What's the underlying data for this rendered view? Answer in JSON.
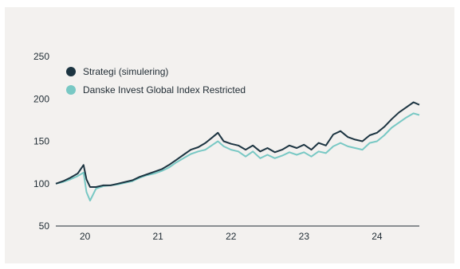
{
  "colors": {
    "background": "#f3f1ef",
    "strategy": "#1c3441",
    "index": "#78c8c4"
  },
  "legend": {
    "items": [
      {
        "label": "Strategi (simulering)",
        "color": "#1c3441"
      },
      {
        "label": "Danske Invest Global Index Restricted",
        "color": "#78c8c4"
      }
    ]
  },
  "chart_data": {
    "type": "line",
    "title": "",
    "xlabel": "",
    "ylabel": "",
    "ylim": [
      50,
      250
    ],
    "yticks": [
      50,
      100,
      150,
      200,
      250
    ],
    "xlim": [
      2019.7,
      2024.68
    ],
    "xticks": [
      {
        "label": "20",
        "value": 2020.1
      },
      {
        "label": "21",
        "value": 2021.1
      },
      {
        "label": "22",
        "value": 2022.1
      },
      {
        "label": "23",
        "value": 2023.1
      },
      {
        "label": "24",
        "value": 2024.1
      }
    ],
    "legend_position": "top-left",
    "grid": false,
    "series": [
      {
        "name": "Strategi (simulering)",
        "color": "#1c3441",
        "x": [
          2019.7,
          2019.8,
          2019.9,
          2020.0,
          2020.08,
          2020.12,
          2020.17,
          2020.25,
          2020.35,
          2020.45,
          2020.55,
          2020.65,
          2020.75,
          2020.85,
          2020.95,
          2021.05,
          2021.15,
          2021.25,
          2021.35,
          2021.45,
          2021.55,
          2021.65,
          2021.75,
          2021.85,
          2021.92,
          2022.0,
          2022.1,
          2022.2,
          2022.3,
          2022.4,
          2022.5,
          2022.6,
          2022.7,
          2022.8,
          2022.9,
          2023.0,
          2023.1,
          2023.2,
          2023.3,
          2023.4,
          2023.5,
          2023.6,
          2023.7,
          2023.8,
          2023.9,
          2024.0,
          2024.1,
          2024.2,
          2024.3,
          2024.4,
          2024.5,
          2024.6,
          2024.68
        ],
        "y": [
          100,
          103,
          107,
          112,
          122,
          105,
          96,
          96,
          98,
          98,
          100,
          102,
          104,
          108,
          111,
          114,
          117,
          122,
          128,
          134,
          140,
          143,
          148,
          155,
          160,
          150,
          147,
          145,
          140,
          145,
          138,
          142,
          137,
          140,
          145,
          142,
          146,
          140,
          148,
          145,
          158,
          162,
          155,
          152,
          150,
          157,
          160,
          167,
          176,
          184,
          190,
          196,
          193
        ]
      },
      {
        "name": "Danske Invest Global Index Restricted",
        "color": "#78c8c4",
        "x": [
          2019.7,
          2019.8,
          2019.9,
          2020.0,
          2020.08,
          2020.12,
          2020.17,
          2020.25,
          2020.35,
          2020.45,
          2020.55,
          2020.65,
          2020.75,
          2020.85,
          2020.95,
          2021.05,
          2021.15,
          2021.25,
          2021.35,
          2021.45,
          2021.55,
          2021.65,
          2021.75,
          2021.85,
          2021.92,
          2022.0,
          2022.1,
          2022.2,
          2022.3,
          2022.4,
          2022.5,
          2022.6,
          2022.7,
          2022.8,
          2022.9,
          2023.0,
          2023.1,
          2023.2,
          2023.3,
          2023.4,
          2023.5,
          2023.6,
          2023.7,
          2023.8,
          2023.9,
          2024.0,
          2024.1,
          2024.2,
          2024.3,
          2024.4,
          2024.5,
          2024.6,
          2024.68
        ],
        "y": [
          100,
          102,
          105,
          109,
          113,
          90,
          80,
          94,
          97,
          98,
          99,
          101,
          103,
          107,
          110,
          112,
          115,
          119,
          125,
          130,
          135,
          138,
          140,
          146,
          150,
          144,
          140,
          138,
          132,
          138,
          130,
          134,
          130,
          133,
          137,
          134,
          137,
          132,
          138,
          136,
          144,
          148,
          144,
          142,
          140,
          148,
          150,
          157,
          166,
          172,
          178,
          183,
          181
        ]
      }
    ]
  }
}
